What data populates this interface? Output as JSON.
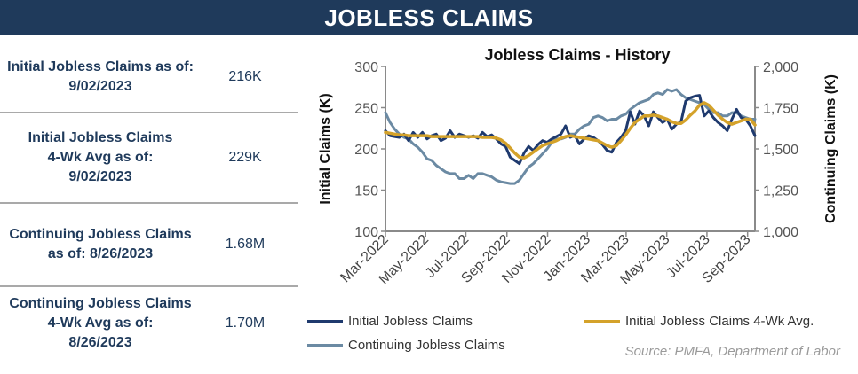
{
  "header": {
    "title": "JOBLESS CLAIMS"
  },
  "stats": [
    {
      "label": "Initial Jobless Claims as of:\n9/02/2023",
      "value": "216K"
    },
    {
      "label": "Initial Jobless Claims\n4-Wk Avg as of:\n9/02/2023",
      "value": "229K"
    },
    {
      "label": "Continuing Jobless Claims\nas of: 8/26/2023",
      "value": "1.68M"
    },
    {
      "label": "Continuing Jobless Claims\n4-Wk Avg as of:\n8/26/2023",
      "value": "1.70M"
    }
  ],
  "source": "Source: PMFA,  Department of Labor",
  "colors": {
    "navy": "#1f3a5b",
    "initial": "#1f3a6e",
    "avg": "#d4a22a",
    "continuing": "#6b8aa3",
    "axis": "#8a8a8a"
  },
  "chart_data": {
    "type": "line",
    "title": "Jobless Claims - History",
    "ylabel_left": "Initial Claims (K)",
    "ylabel_right": "Continuing  Claims (K)",
    "ylim_left": [
      100,
      300
    ],
    "yticks_left": [
      "100",
      "150",
      "200",
      "250",
      "300"
    ],
    "ylim_right": [
      1000,
      2000
    ],
    "yticks_right": [
      "1,000",
      "1,250",
      "1,500",
      "1,750",
      "2,000"
    ],
    "x_start": "2022-03-05",
    "x_step_days": 7,
    "x_ticks": [
      "Mar-2022",
      "May-2022",
      "Jul-2022",
      "Sep-2022",
      "Nov-2022",
      "Jan-2023",
      "Mar-2023",
      "May-2023",
      "Jul-2023",
      "Sep-2023"
    ],
    "x_tick_weeks": [
      0,
      8.7,
      17.4,
      26.3,
      35.1,
      43.7,
      52.1,
      60.9,
      69.6,
      78.4
    ],
    "legend": [
      "Initial Jobless Claims",
      "Initial Jobless Claims 4-Wk Avg.",
      "Continuing Jobless Claims"
    ],
    "series": [
      {
        "name": "Initial Jobless Claims",
        "axis": "left",
        "values": [
          222,
          216,
          215,
          214,
          218,
          210,
          220,
          214,
          220,
          212,
          216,
          218,
          210,
          213,
          222,
          214,
          218,
          216,
          214,
          216,
          213,
          220,
          215,
          217,
          212,
          206,
          203,
          190,
          186,
          182,
          195,
          203,
          198,
          205,
          210,
          208,
          212,
          215,
          218,
          228,
          214,
          216,
          206,
          212,
          216,
          214,
          210,
          205,
          198,
          196,
          208,
          214,
          222,
          245,
          230,
          246,
          240,
          228,
          245,
          238,
          232,
          236,
          224,
          230,
          233,
          258,
          262,
          264,
          265,
          240,
          246,
          238,
          232,
          228,
          222,
          236,
          248,
          238,
          236,
          228,
          216
        ]
      },
      {
        "name": "Initial Jobless Claims 4-Wk Avg.",
        "axis": "left",
        "values": [
          220,
          219,
          218,
          217,
          217,
          216,
          216,
          216,
          216,
          216,
          215,
          215,
          215,
          215,
          215,
          215,
          215,
          215,
          215,
          215,
          215,
          214,
          214,
          214,
          213,
          211,
          207,
          201,
          195,
          190,
          189,
          192,
          196,
          200,
          204,
          206,
          208,
          210,
          213,
          215,
          216,
          215,
          214,
          213,
          212,
          211,
          210,
          207,
          204,
          202,
          204,
          210,
          217,
          225,
          232,
          236,
          240,
          240,
          241,
          240,
          238,
          236,
          233,
          231,
          231,
          235,
          241,
          246,
          253,
          256,
          253,
          247,
          241,
          236,
          232,
          230,
          232,
          234,
          236,
          236,
          229
        ]
      },
      {
        "name": "Continuing Jobless Claims",
        "axis": "right",
        "values": [
          1720,
          1660,
          1620,
          1590,
          1570,
          1560,
          1530,
          1510,
          1480,
          1440,
          1430,
          1400,
          1380,
          1360,
          1350,
          1350,
          1320,
          1320,
          1340,
          1320,
          1350,
          1350,
          1340,
          1330,
          1310,
          1300,
          1295,
          1290,
          1290,
          1310,
          1350,
          1390,
          1410,
          1440,
          1470,
          1500,
          1540,
          1560,
          1560,
          1570,
          1590,
          1590,
          1620,
          1640,
          1650,
          1690,
          1700,
          1690,
          1670,
          1680,
          1680,
          1700,
          1710,
          1740,
          1760,
          1780,
          1790,
          1800,
          1830,
          1840,
          1830,
          1860,
          1850,
          1860,
          1830,
          1810,
          1800,
          1790,
          1780,
          1770,
          1740,
          1720,
          1720,
          1700,
          1700,
          1720,
          1720,
          1700,
          1690,
          1680,
          1680
        ]
      }
    ]
  }
}
